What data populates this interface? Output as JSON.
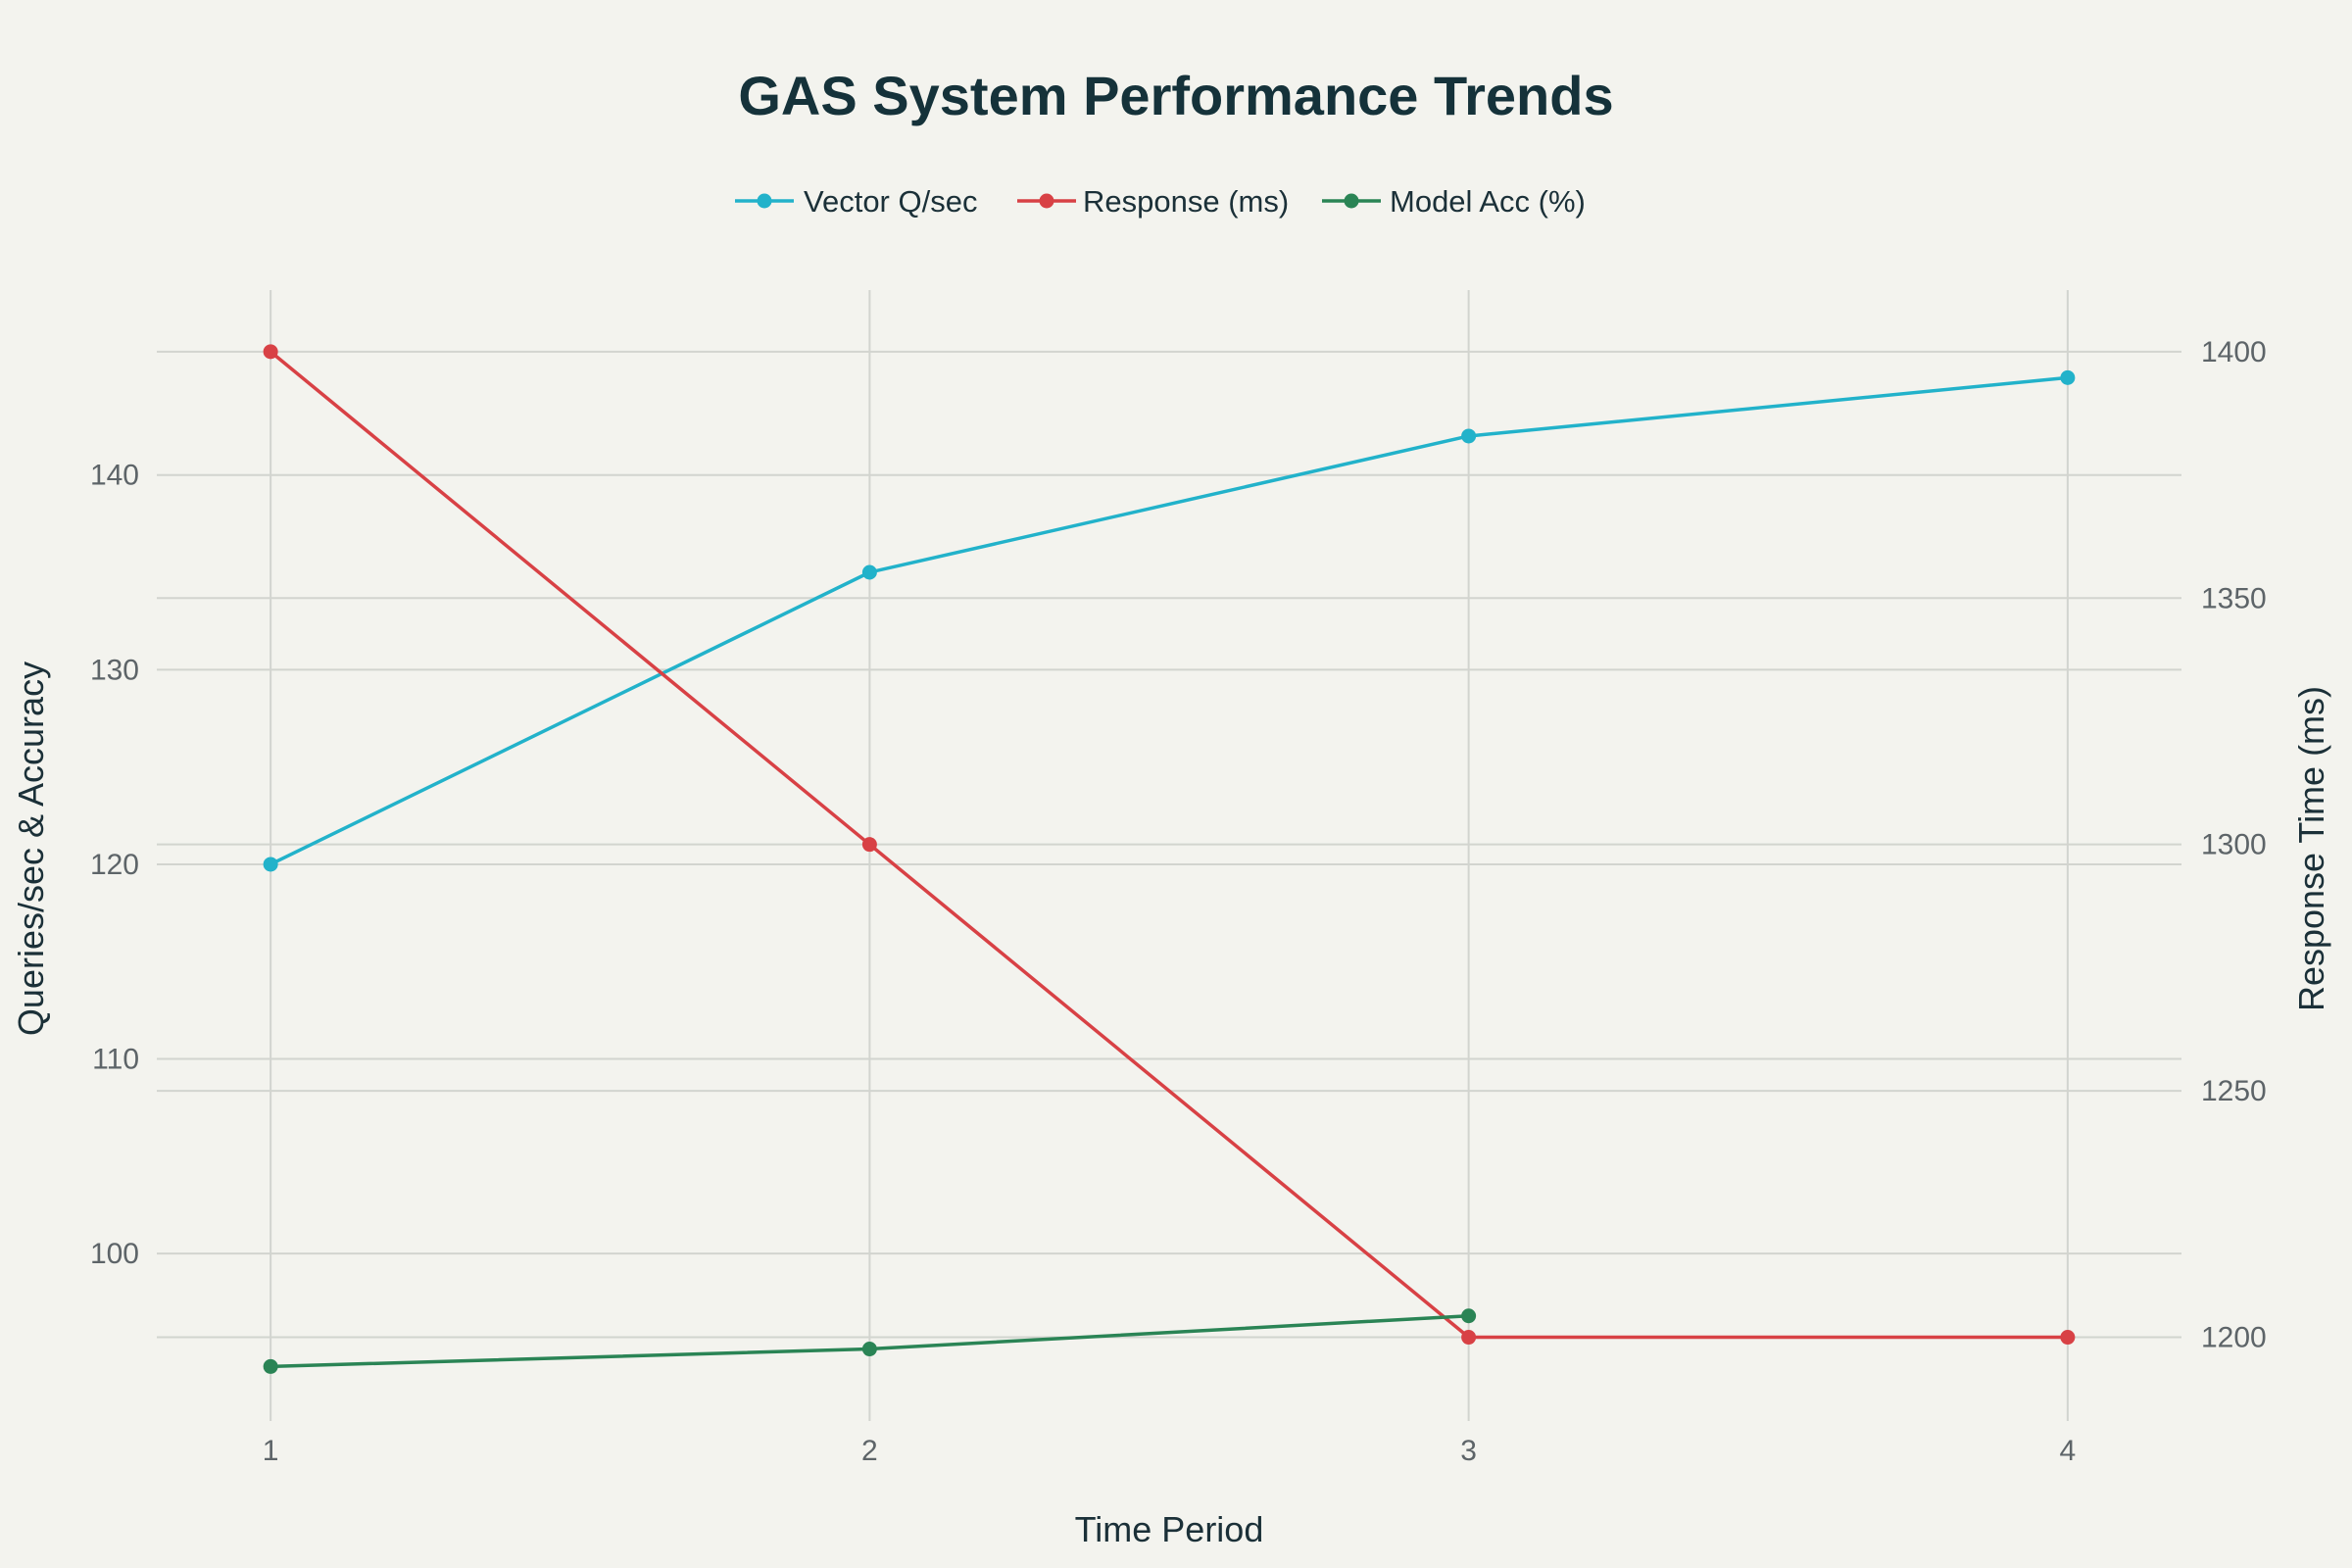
{
  "chart_data": {
    "type": "line",
    "title": "GAS System Performance Trends",
    "xlabel": "Time Period",
    "ylabel_left": "Queries/sec & Accuracy",
    "ylabel_right": "Response Time (ms)",
    "x": [
      1,
      2,
      3,
      4
    ],
    "x_ticks": [
      "1",
      "2",
      "3",
      "4"
    ],
    "xlim": [
      0.81,
      4.19
    ],
    "ylim_left": [
      91.4,
      149.5
    ],
    "yticks_left": [
      100,
      110,
      120,
      130,
      140
    ],
    "ylim_right": [
      1183,
      1412.5
    ],
    "yticks_right": [
      1200,
      1250,
      1300,
      1350,
      1400
    ],
    "grid": true,
    "legend_position": "top-center",
    "series": [
      {
        "name": "Vector Q/sec",
        "axis": "left",
        "color": "#22b2ca",
        "values": [
          120,
          135,
          142,
          145
        ]
      },
      {
        "name": "Response (ms)",
        "axis": "right",
        "color": "#d84145",
        "values": [
          1400,
          1300,
          1200,
          1200
        ]
      },
      {
        "name": "Model Acc (%)",
        "axis": "left",
        "color": "#2a8455",
        "values": [
          94.2,
          95.1,
          96.8,
          null
        ]
      }
    ]
  }
}
